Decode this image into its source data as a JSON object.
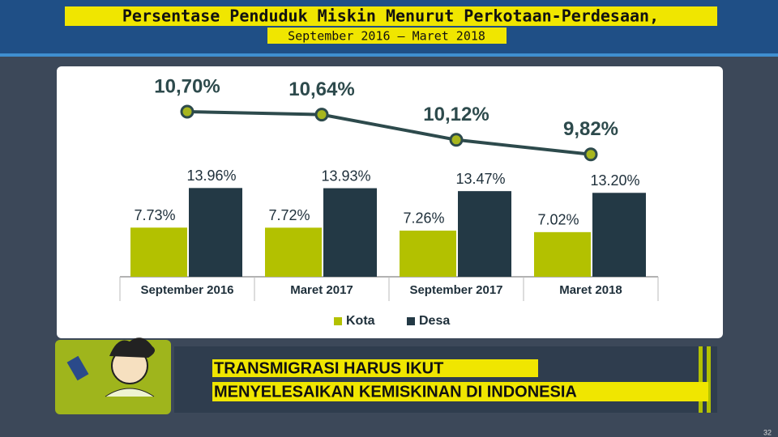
{
  "header": {
    "title": "Persentase Penduduk Miskin Menurut Perkotaan-Perdesaan,",
    "subtitle": "September 2016 – Maret 2018"
  },
  "chart_data": {
    "type": "bar",
    "categories": [
      "September 2016",
      "Maret 2017",
      "September 2017",
      "Maret 2018"
    ],
    "series": [
      {
        "name": "Kota",
        "color": "#b3c100",
        "values": [
          7.73,
          7.72,
          7.26,
          7.02
        ],
        "value_labels": [
          "7.73%",
          "7.72%",
          "7.26%",
          "7.02%"
        ]
      },
      {
        "name": "Desa",
        "color": "#233945",
        "values": [
          13.96,
          13.93,
          13.47,
          13.2
        ],
        "value_labels": [
          "13.96%",
          "13.93%",
          "13.47%",
          "13.20%"
        ]
      }
    ],
    "line": {
      "color": "#2d4a4c",
      "values": [
        10.7,
        10.64,
        10.12,
        9.82
      ],
      "value_labels": [
        "10,70%",
        "10,64%",
        "10,12%",
        "9,82%"
      ]
    },
    "ylim": [
      0,
      14
    ],
    "y2lim": [
      9.5,
      11
    ]
  },
  "banner": {
    "lines": [
      "TRANSMIGRASI  HARUS IKUT",
      "MENYELESAIKAN KEMISKINAN DI INDONESIA"
    ]
  },
  "slide_number": "32"
}
